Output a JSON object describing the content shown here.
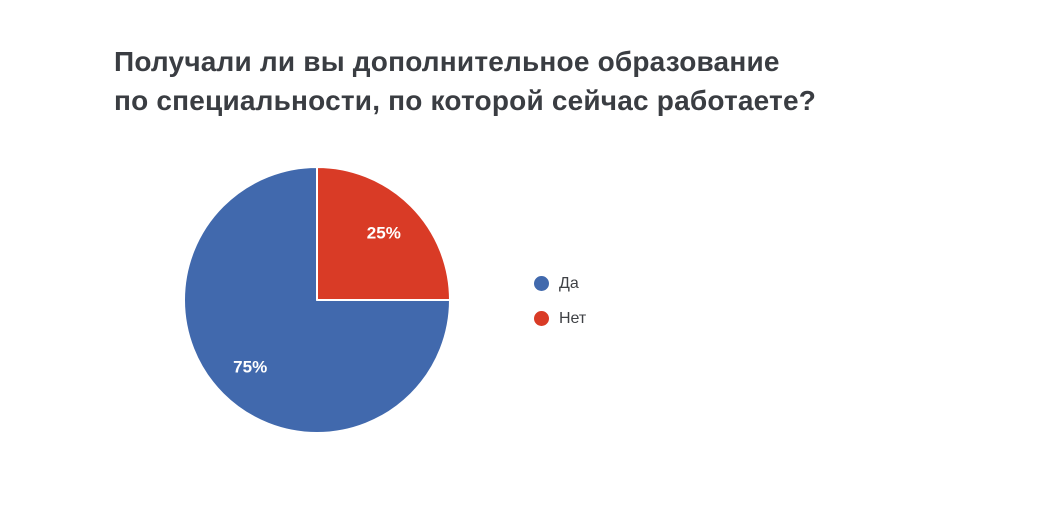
{
  "title": {
    "line1": "Получали ли вы дополнительное образование",
    "line2": "по специальности, по которой сейчас работаете?"
  },
  "chart_data": {
    "type": "pie",
    "title": "Получали ли вы дополнительное образование по специальности, по которой сейчас работаете?",
    "slices": [
      {
        "label": "Да",
        "value": 75,
        "display": "75%",
        "color": "#4169ad"
      },
      {
        "label": "Нет",
        "value": 25,
        "display": "25%",
        "color": "#d93b26"
      }
    ],
    "rotation_deg": 90,
    "direction": "clockwise",
    "data_labels": "percent",
    "data_label_color": "#ffffff",
    "legend_position": "right",
    "background": "#ffffff"
  },
  "legend": {
    "items": [
      {
        "label": "Да",
        "color": "#4169ad"
      },
      {
        "label": "Нет",
        "color": "#d93b26"
      }
    ]
  }
}
